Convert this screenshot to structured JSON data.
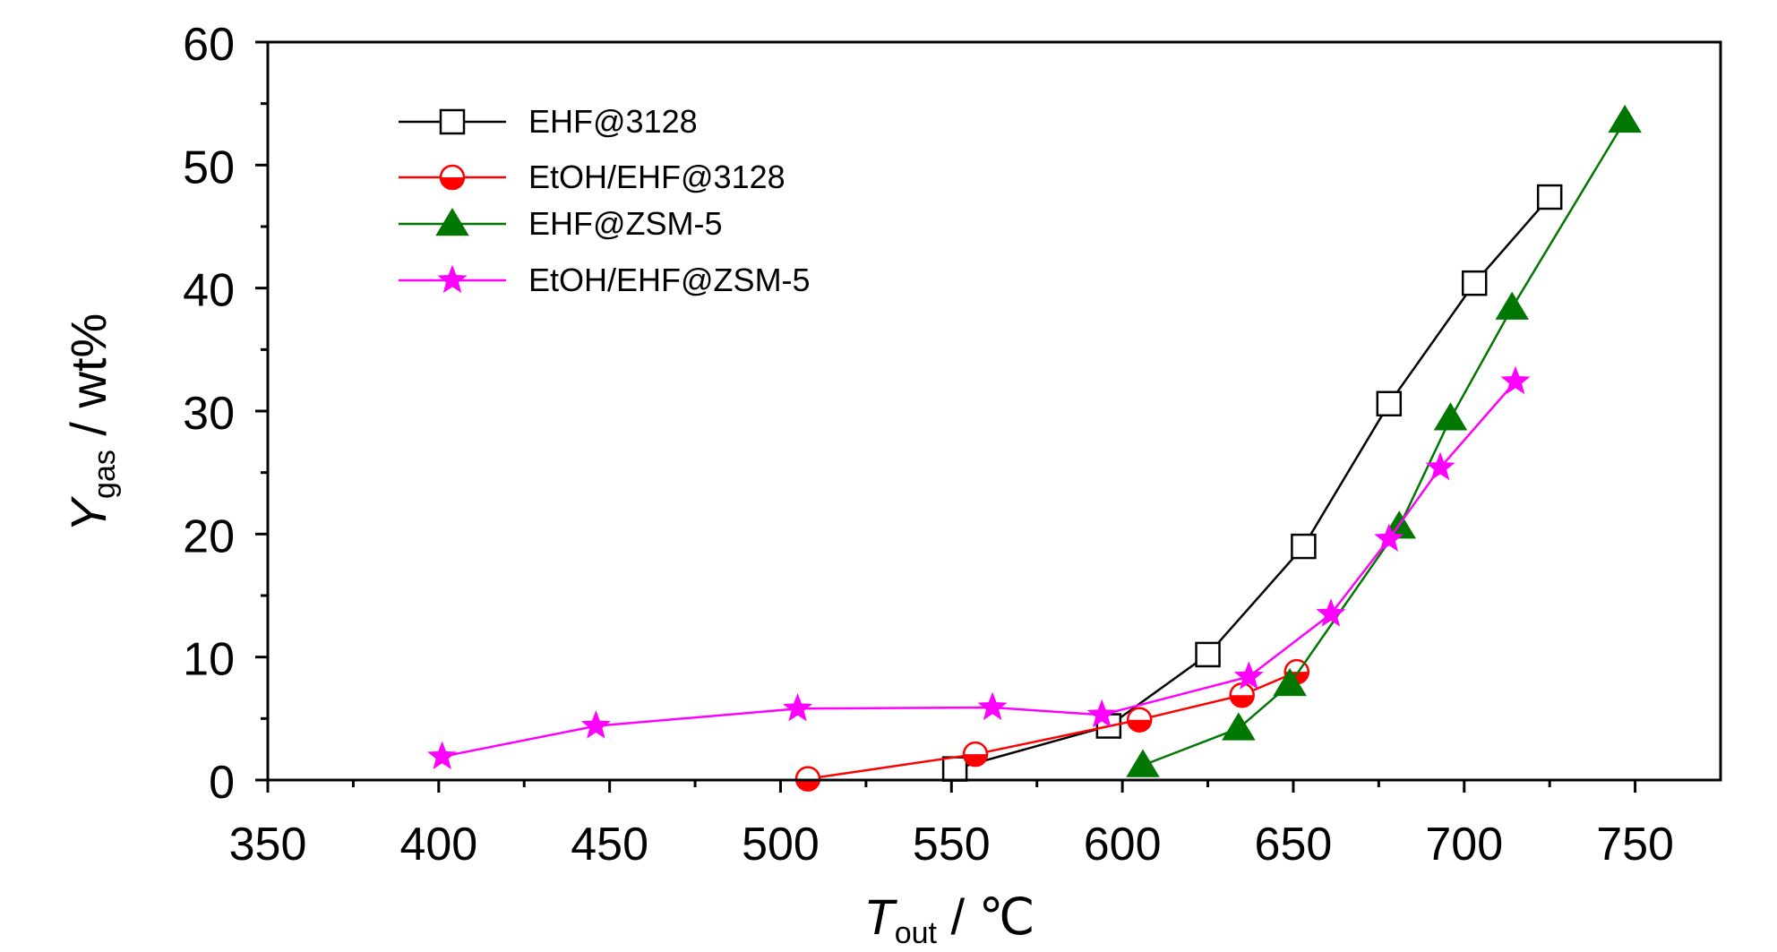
{
  "chart_data": {
    "type": "line",
    "title": "",
    "xlabel": "T",
    "xlabel_sub": "out",
    "xlabel_unit": " / ℃",
    "ylabel": "Y",
    "ylabel_sub": "gas",
    "ylabel_unit": " / wt%",
    "xlim": [
      350,
      775
    ],
    "ylim": [
      0,
      60
    ],
    "xticks": [
      350,
      400,
      450,
      500,
      550,
      600,
      650,
      700,
      750
    ],
    "xticks_minor": [
      375,
      425,
      475,
      525,
      575,
      625,
      675,
      725
    ],
    "yticks": [
      0,
      10,
      20,
      30,
      40,
      50,
      60
    ],
    "yticks_minor": [
      5,
      15,
      25,
      35,
      45,
      55
    ],
    "grid": false,
    "legend_position": "top-left",
    "series": [
      {
        "name": "EHF@3128",
        "color": "#000000",
        "marker": "open-square",
        "x": [
          551,
          596,
          625,
          653,
          678,
          703,
          725
        ],
        "y": [
          0.9,
          4.4,
          10.2,
          19.0,
          30.6,
          40.4,
          47.4
        ]
      },
      {
        "name": "EtOH/EHF@3128",
        "color": "#ff0000",
        "marker": "half-open-circle",
        "x": [
          508,
          557,
          605,
          635,
          651
        ],
        "y": [
          0.1,
          2.1,
          4.9,
          6.9,
          8.8
        ]
      },
      {
        "name": "EHF@ZSM-5",
        "color": "#007700",
        "marker": "filled-triangle",
        "x": [
          606,
          634,
          649,
          681,
          696,
          714,
          747
        ],
        "y": [
          1.2,
          4.2,
          7.8,
          20.6,
          29.4,
          38.4,
          53.6
        ]
      },
      {
        "name": "EtOH/EHF@ZSM-5",
        "color": "#ff00ff",
        "marker": "filled-star",
        "x": [
          401,
          446,
          505,
          562,
          594,
          637,
          661,
          678,
          693,
          715
        ],
        "y": [
          1.9,
          4.4,
          5.8,
          5.9,
          5.3,
          8.4,
          13.5,
          19.6,
          25.4,
          32.4
        ]
      }
    ]
  }
}
